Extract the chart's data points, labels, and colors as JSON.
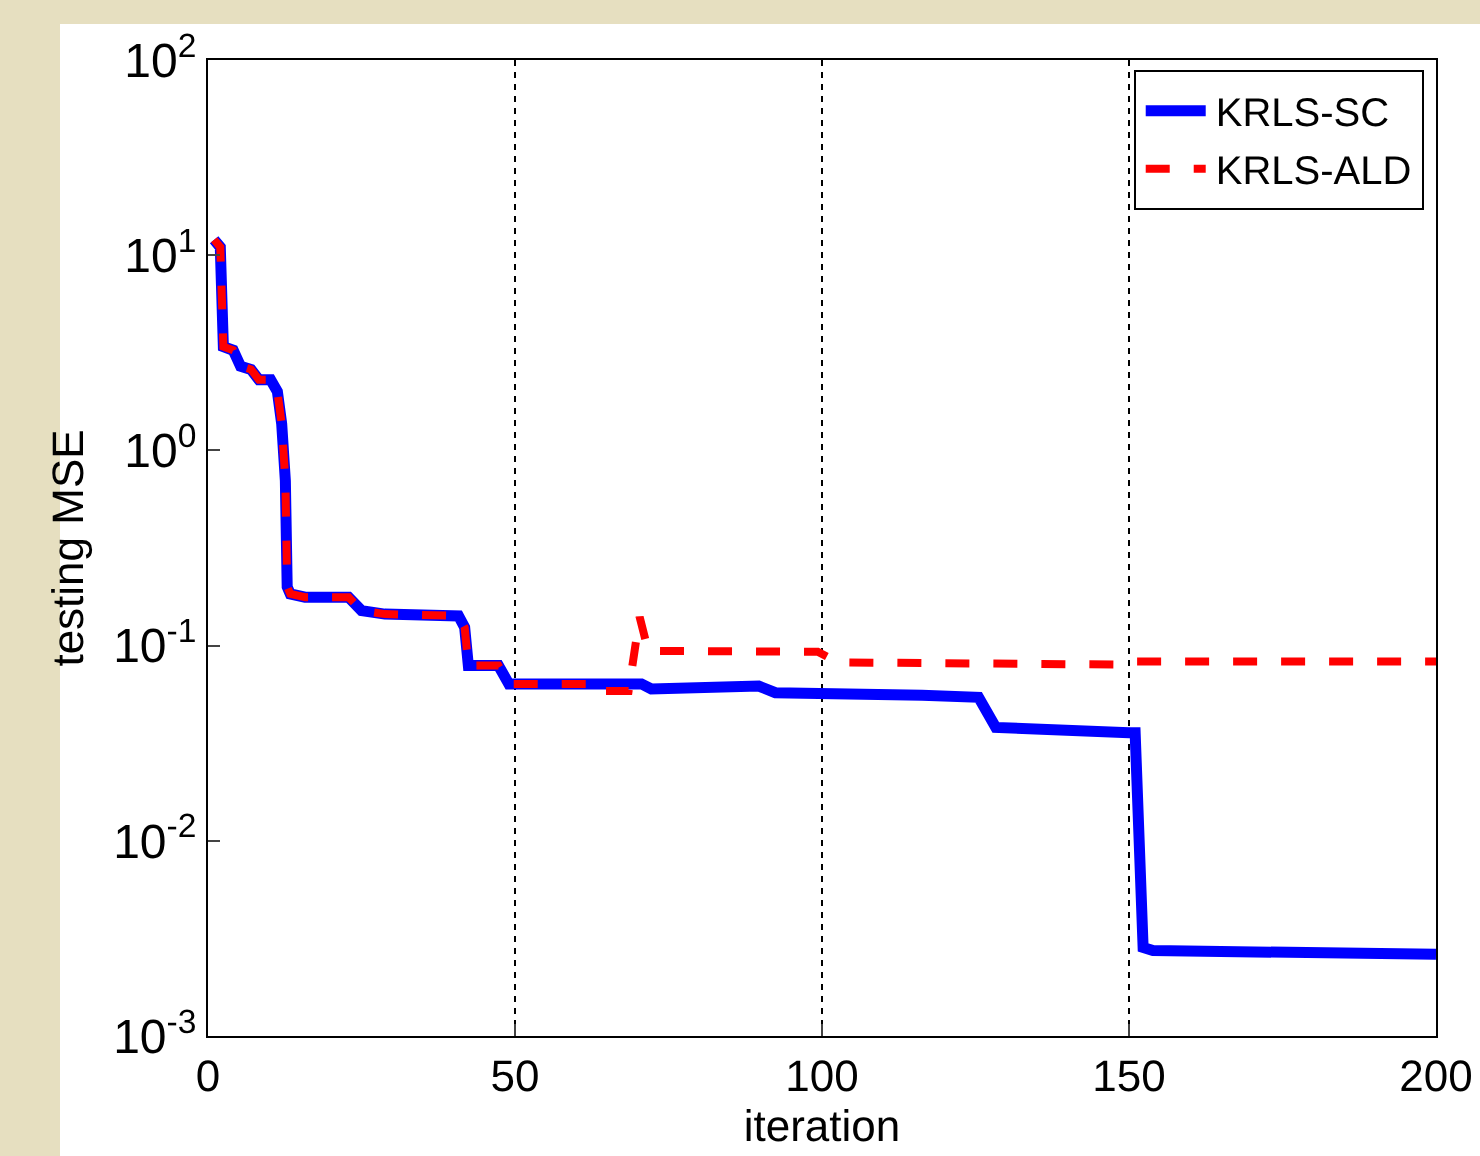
{
  "chart_data": {
    "type": "line",
    "xlabel": "iteration",
    "ylabel": "testing MSE",
    "log": "y",
    "xlim": [
      0,
      200
    ],
    "xticks": [
      0,
      50,
      100,
      150,
      200
    ],
    "ylim": [
      0.001,
      100
    ],
    "yticks": [
      {
        "value": 0.001,
        "label": "10$^{-3}$"
      },
      {
        "value": 0.01,
        "label": "10$^{-2}$"
      },
      {
        "value": 0.1,
        "label": "10$^{-1}$"
      },
      {
        "value": 1,
        "label": "10$^{0}$"
      },
      {
        "value": 10,
        "label": "10$^{1}$"
      },
      {
        "value": 100,
        "label": "10$^{2}$"
      }
    ],
    "grid": "x",
    "legend": "top right",
    "marker": "none",
    "series": [
      {
        "name": "KRLS-SC",
        "color": "#0000ff",
        "line_style": "solid",
        "x": [
          1,
          2,
          2.5,
          4.1,
          5.3,
          7,
          8.3,
          10.2,
          11.3,
          12,
          12.6,
          12.9,
          13.4,
          15.8,
          22.9,
          25,
          28.8,
          40.8,
          41.8,
          42.4,
          47.3,
          49,
          63.7,
          70.6,
          72.2,
          89.7,
          92.4,
          116.3,
          125.5,
          128.3,
          150,
          151,
          152.3,
          153.9,
          200
        ],
        "values": [
          12,
          11,
          3.4,
          3.26,
          2.7,
          2.6,
          2.3,
          2.3,
          2.0,
          1.37,
          0.7,
          0.2,
          0.184,
          0.177,
          0.177,
          0.151,
          0.145,
          0.142,
          0.124,
          0.079,
          0.079,
          0.0636,
          0.0636,
          0.0636,
          0.06,
          0.062,
          0.0574,
          0.0557,
          0.0543,
          0.0381,
          0.0358,
          0.0358,
          0.00284,
          0.00274,
          0.00262
        ]
      },
      {
        "name": "KRLS-ALD",
        "color": "#ff0000",
        "line_style": "dashed",
        "x": [
          1,
          2,
          2.5,
          4.1,
          5.3,
          7,
          8.3,
          10.2,
          11.3,
          12,
          12.6,
          12.9,
          13.4,
          15.8,
          22.9,
          25,
          28.8,
          40.8,
          41.8,
          42.4,
          47.3,
          49,
          63.7,
          64.5,
          68.5,
          70.3,
          71.7,
          99.3,
          102.6,
          148,
          151,
          200
        ],
        "values": [
          12,
          11,
          3.4,
          3.26,
          2.7,
          2.6,
          2.3,
          2.3,
          2.0,
          1.37,
          0.7,
          0.2,
          0.184,
          0.177,
          0.177,
          0.151,
          0.145,
          0.142,
          0.124,
          0.079,
          0.079,
          0.0636,
          0.0636,
          0.0585,
          0.0585,
          0.14,
          0.094,
          0.093,
          0.082,
          0.08,
          0.083,
          0.083
        ]
      }
    ]
  }
}
